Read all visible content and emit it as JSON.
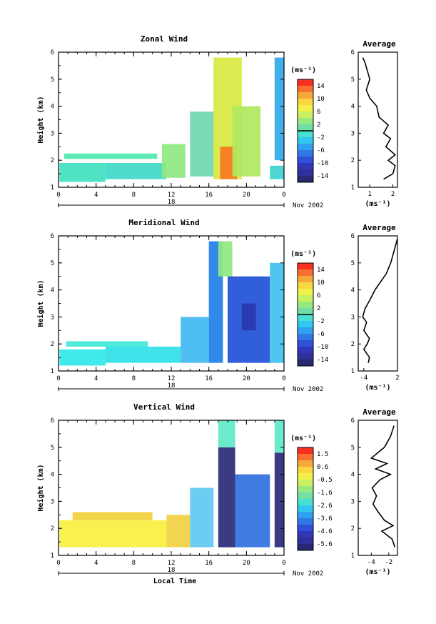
{
  "chart_data": [
    {
      "type": "heatmap",
      "title": "Zonal Wind",
      "ylabel": "Height (km)",
      "x_ticks": [
        "0",
        "4",
        "8",
        "12",
        "16",
        "20",
        "0"
      ],
      "y_ticks": [
        "1",
        "2",
        "3",
        "4",
        "5",
        "6"
      ],
      "ylim": [
        1,
        6
      ],
      "xlim": [
        0,
        24
      ],
      "date_day": "18",
      "date_month_year": "Nov 2002",
      "colorbar": {
        "unit": "(ms⁻¹)",
        "labels": [
          "14",
          "10",
          "6",
          "2",
          "-2",
          "-6",
          "-10",
          "-14"
        ],
        "zero_line_position": 0.5
      },
      "profile": {
        "title": "Average",
        "xlabel": "(ms⁻¹)",
        "x_ticks": [
          "1",
          "2"
        ],
        "xlim": [
          0.5,
          2.2
        ],
        "y": [
          1.3,
          1.5,
          1.8,
          2.0,
          2.2,
          2.5,
          2.8,
          3.0,
          3.3,
          3.6,
          4.0,
          4.3,
          4.6,
          5.0,
          5.3,
          5.6,
          5.8
        ],
        "x": [
          1.6,
          2.0,
          2.1,
          1.8,
          2.1,
          1.7,
          1.9,
          1.6,
          1.8,
          1.4,
          1.3,
          1.0,
          0.85,
          1.0,
          0.9,
          0.8,
          0.7
        ]
      },
      "regions": [
        {
          "x": [
            0.1,
            5.0
          ],
          "y": [
            1.2,
            1.9
          ],
          "color": "#40e0c0"
        },
        {
          "x": [
            5.0,
            11.5
          ],
          "y": [
            1.3,
            1.9
          ],
          "color": "#40d8c8"
        },
        {
          "x": [
            0.6,
            10.5
          ],
          "y": [
            2.05,
            2.25
          ],
          "color": "#50e8b0"
        },
        {
          "x": [
            11.0,
            13.5
          ],
          "y": [
            1.35,
            2.6
          ],
          "color": "#90e880"
        },
        {
          "x": [
            14.0,
            16.5
          ],
          "y": [
            1.4,
            3.8
          ],
          "color": "#70d8b0"
        },
        {
          "x": [
            16.5,
            19.5
          ],
          "y": [
            1.3,
            5.8
          ],
          "color": "#d8e840"
        },
        {
          "x": [
            17.2,
            19.0
          ],
          "y": [
            1.3,
            2.5
          ],
          "color": "#f87820"
        },
        {
          "x": [
            18.5,
            21.5
          ],
          "y": [
            1.4,
            4.0
          ],
          "color": "#b0e860"
        },
        {
          "x": [
            22.5,
            24.0
          ],
          "y": [
            1.3,
            1.8
          ],
          "color": "#40d0d0"
        },
        {
          "x": [
            23.0,
            24.0
          ],
          "y": [
            2.0,
            5.8
          ],
          "color": "#30a8e8"
        }
      ]
    },
    {
      "type": "heatmap",
      "title": "Meridional Wind",
      "ylabel": "Height (km)",
      "x_ticks": [
        "0",
        "4",
        "8",
        "12",
        "16",
        "20",
        "0"
      ],
      "y_ticks": [
        "1",
        "2",
        "3",
        "4",
        "5",
        "6"
      ],
      "ylim": [
        1,
        6
      ],
      "xlim": [
        0,
        24
      ],
      "date_day": "18",
      "date_month_year": "Nov 2002",
      "colorbar": {
        "unit": "(ms⁻¹)",
        "labels": [
          "14",
          "10",
          "6",
          "2",
          "-2",
          "-6",
          "-10",
          "-14"
        ],
        "zero_line_position": 0.5
      },
      "profile": {
        "title": "Average",
        "xlabel": "(ms⁻¹)",
        "x_ticks": [
          "-4",
          "2"
        ],
        "xlim": [
          -5,
          2
        ],
        "y": [
          1.3,
          1.5,
          1.8,
          2.0,
          2.2,
          2.5,
          2.8,
          3.0,
          3.3,
          3.6,
          4.0,
          4.3,
          4.6,
          5.0,
          5.3,
          5.6,
          5.9
        ],
        "x": [
          -3.2,
          -3.0,
          -4.0,
          -3.4,
          -3.0,
          -4.0,
          -3.5,
          -4.2,
          -3.8,
          -3.0,
          -2.0,
          -1.0,
          0.0,
          0.8,
          1.2,
          1.6,
          2.0
        ]
      },
      "regions": [
        {
          "x": [
            0.1,
            5.0
          ],
          "y": [
            1.2,
            1.8
          ],
          "color": "#30e8e8"
        },
        {
          "x": [
            5.0,
            13.0
          ],
          "y": [
            1.3,
            1.9
          ],
          "color": "#30e0e8"
        },
        {
          "x": [
            0.8,
            9.5
          ],
          "y": [
            1.9,
            2.1
          ],
          "color": "#40e8d8"
        },
        {
          "x": [
            13.0,
            16.0
          ],
          "y": [
            1.3,
            3.0
          ],
          "color": "#40b8f0"
        },
        {
          "x": [
            16.0,
            17.5
          ],
          "y": [
            1.3,
            5.8
          ],
          "color": "#2080e8"
        },
        {
          "x": [
            17.0,
            18.5
          ],
          "y": [
            4.5,
            5.8
          ],
          "color": "#90e880"
        },
        {
          "x": [
            18.0,
            22.5
          ],
          "y": [
            1.3,
            4.5
          ],
          "color": "#2050d8"
        },
        {
          "x": [
            19.5,
            21.0
          ],
          "y": [
            2.5,
            3.5
          ],
          "color": "#2838b0"
        },
        {
          "x": [
            22.5,
            24.0
          ],
          "y": [
            1.3,
            5.0
          ],
          "color": "#40c0f0"
        }
      ]
    },
    {
      "type": "heatmap",
      "title": "Vertical Wind",
      "ylabel": "Height (km)",
      "xlabel": "Local Time",
      "x_ticks": [
        "0",
        "4",
        "8",
        "12",
        "16",
        "20",
        "0"
      ],
      "y_ticks": [
        "1",
        "2",
        "3",
        "4",
        "5",
        "6"
      ],
      "ylim": [
        1,
        6
      ],
      "xlim": [
        0,
        24
      ],
      "date_day": "18",
      "date_month_year": "Nov 2002",
      "colorbar": {
        "unit": "(ms⁻¹)",
        "labels": [
          "1.5",
          "0.6",
          "-0.5",
          "-1.6",
          "-2.6",
          "-3.6",
          "-4.6",
          "-5.6"
        ],
        "zero_line_position": null
      },
      "profile": {
        "title": "Average",
        "xlabel": "(ms⁻¹)",
        "x_ticks": [
          "-4",
          "-2"
        ],
        "xlim": [
          -5.5,
          -1
        ],
        "y": [
          1.3,
          1.6,
          1.9,
          2.1,
          2.3,
          2.6,
          2.9,
          3.2,
          3.5,
          3.8,
          4.0,
          4.2,
          4.4,
          4.6,
          5.0,
          5.4,
          5.8
        ],
        "x": [
          -1.3,
          -1.6,
          -2.8,
          -1.5,
          -2.5,
          -3.2,
          -3.8,
          -3.4,
          -3.9,
          -3.0,
          -1.8,
          -3.5,
          -2.2,
          -4.0,
          -2.5,
          -1.8,
          -1.4
        ]
      },
      "regions": [
        {
          "x": [
            0.1,
            11.5
          ],
          "y": [
            1.3,
            2.3
          ],
          "color": "#f8f040"
        },
        {
          "x": [
            1.5,
            10.0
          ],
          "y": [
            2.3,
            2.6
          ],
          "color": "#f0d038"
        },
        {
          "x": [
            11.5,
            14.0
          ],
          "y": [
            1.3,
            2.5
          ],
          "color": "#f0d040"
        },
        {
          "x": [
            14.0,
            16.5
          ],
          "y": [
            1.3,
            3.5
          ],
          "color": "#60c8f0"
        },
        {
          "x": [
            17.0,
            18.8
          ],
          "y": [
            1.3,
            5.0
          ],
          "color": "#2a2a7a"
        },
        {
          "x": [
            17.0,
            18.8
          ],
          "y": [
            5.0,
            6.0
          ],
          "color": "#60e8c8"
        },
        {
          "x": [
            18.8,
            22.5
          ],
          "y": [
            1.3,
            4.0
          ],
          "color": "#3070e0"
        },
        {
          "x": [
            23.0,
            24.0
          ],
          "y": [
            1.3,
            4.8
          ],
          "color": "#2a2a7a"
        },
        {
          "x": [
            23.0,
            24.0
          ],
          "y": [
            4.8,
            6.0
          ],
          "color": "#60e8c8"
        }
      ]
    }
  ]
}
